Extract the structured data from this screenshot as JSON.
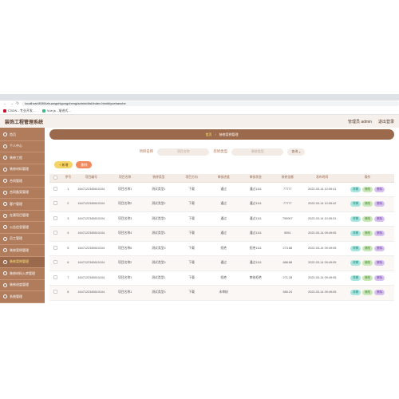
{
  "browser": {
    "url": "localhost:8080/zhuangshigongcheng/admin/dist/index.html#/yuebanche",
    "bookmarks": [
      "CSDN - 专业开发…",
      "Vue.js - 渐进式…"
    ]
  },
  "app": {
    "title": "装饰工程管理系统",
    "user_label": "管理员 admin",
    "logout_label": "退出登录"
  },
  "sidebar": {
    "items": [
      {
        "label": "首页"
      },
      {
        "label": "个人中心"
      },
      {
        "label": "装修工程"
      },
      {
        "label": "装修材料管理"
      },
      {
        "label": "合同管理"
      },
      {
        "label": "合同备案管理"
      },
      {
        "label": "客户管理"
      },
      {
        "label": "在建项目管理"
      },
      {
        "label": "公告信息管理"
      },
      {
        "label": "员工管理"
      },
      {
        "label": "装修案例管理"
      },
      {
        "label": "装修案例管理",
        "active": true
      },
      {
        "label": "装修材料入库管理"
      },
      {
        "label": "装修进度管理"
      },
      {
        "label": "系统管理"
      }
    ]
  },
  "breadcrumb": {
    "home": "首页",
    "current": "装修案例管理"
  },
  "search": {
    "field1_label": "项目名称",
    "field1_placeholder": "项目名称",
    "field2_label": "装修类型",
    "field2_placeholder": "装修类型",
    "search_button": "查询"
  },
  "actions": {
    "add_label": "+ 新增",
    "delete_label": "删除"
  },
  "table": {
    "headers": [
      "",
      "序号",
      "项目编号",
      "项目名称",
      "装修类型",
      "项目方向",
      "审核进度",
      "审核状态",
      "装修金额",
      "发布时间",
      "操作"
    ],
    "rows": [
      {
        "idx": "1",
        "code": "1647122345610104",
        "name": "项目名称1",
        "type": "测试类型1",
        "dir": "下载",
        "progress": "通过",
        "status": "通过1111",
        "amount": "77777",
        "time": "2022-03-14 10:05:41"
      },
      {
        "idx": "2",
        "code": "1647122345610104",
        "name": "项目名称2",
        "type": "测试类型2",
        "dir": "下载",
        "progress": "通过",
        "status": "通过1111",
        "amount": "77777",
        "time": "2022-03-14 10:05:42"
      },
      {
        "idx": "3",
        "code": "1647122345610104",
        "name": "项目名称3",
        "type": "测试类型3",
        "dir": "下载",
        "progress": "通过",
        "status": "通过1111",
        "amount": "795907",
        "time": "2022-03-14 10:05:31"
      },
      {
        "idx": "4",
        "code": "1647122345610104",
        "name": "项目名称4",
        "type": "测试类型1",
        "dir": "下载",
        "progress": "通过",
        "status": "通过1111",
        "amount": "5951",
        "time": "2022-03-14 09:49:05"
      },
      {
        "idx": "5",
        "code": "1647122345610104",
        "name": "项目名称6",
        "type": "测试类型3",
        "dir": "下载",
        "progress": "拒绝",
        "status": "拒绝1111",
        "amount": "273.88",
        "time": "2022-03-14 09:49:05"
      },
      {
        "idx": "6",
        "code": "1647122345610104",
        "name": "项目名称2",
        "type": "测试类型3",
        "dir": "下载",
        "progress": "通过",
        "status": "通过1111",
        "amount": "888.88",
        "time": "2022-03-14 09:49:05"
      },
      {
        "idx": "7",
        "code": "1647122345610104",
        "name": "项目名称1",
        "type": "测试类型1",
        "dir": "下载",
        "progress": "拒绝",
        "status": "审核拒绝",
        "amount": "271.28",
        "time": "2022-03-14 09:49:05"
      },
      {
        "idx": "8",
        "code": "1647122345610104",
        "name": "项目名称1",
        "type": "测试类型3",
        "dir": "下载",
        "progress": "未审核",
        "status": "",
        "amount": "580.24",
        "time": "2022-03-14 09:49:05"
      }
    ],
    "op_detail": "详情",
    "op_edit": "修改",
    "op_delete": "删除"
  }
}
